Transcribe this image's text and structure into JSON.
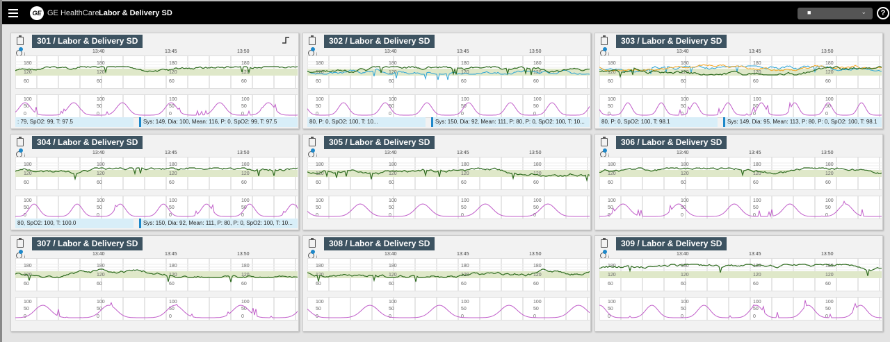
{
  "header": {
    "app": "GE HealthCare",
    "unit": "Labor & Delivery SD",
    "logo": "GE",
    "help": "?",
    "user_icon": "user-icon",
    "chevron": "⌄"
  },
  "time_labels": [
    "13:40",
    "13:45",
    "13:50"
  ],
  "fhr_scale": [
    "180",
    "120",
    "60"
  ],
  "toco_scale": [
    "100",
    "50",
    "0"
  ],
  "colors": {
    "fhr": "#2e6b1f",
    "toco": "#c05cc9",
    "maternal_hr": "#2aa3d6",
    "spo2_trace": "#f5a623",
    "band": "#dfe8c9",
    "title_bg": "#3d5361",
    "status_bg": "#d8eef8",
    "accent": "#1e88c9"
  },
  "beds": [
    {
      "title": "301 / Labor & Delivery SD",
      "status_left": ": 79, SpO2: 99, T: 97.5",
      "status_right": "Sys: 149, Dia: 100, Mean: 116, P: 0, SpO2: 99, T: 97.5"
    },
    {
      "title": "302 / Labor & Delivery SD",
      "status_left": "80, P: 0, SpO2: 100, T: 10...",
      "status_right": "Sys: 150, Dia: 92, Mean: 111, P: 80, P: 0, SpO2: 100, T: 10..."
    },
    {
      "title": "303 / Labor & Delivery SD",
      "status_left": "80, P: 0, SpO2: 100, T: 98.1",
      "status_right": "Sys: 149, Dia: 95, Mean: 113, P: 80, P: 0, SpO2: 100, T: 98.1"
    },
    {
      "title": "304 / Labor & Delivery SD",
      "status_left": "80, SpO2: 100, T: 100.0",
      "status_right": "Sys: 150, Dia: 92, Mean: 111, P: 80, P: 0, SpO2: 100, T: 10..."
    },
    {
      "title": "305 / Labor & Delivery SD",
      "status_left": "",
      "status_right": ""
    },
    {
      "title": "306 / Labor & Delivery SD",
      "status_left": "",
      "status_right": ""
    },
    {
      "title": "307 / Labor & Delivery SD",
      "status_left": "",
      "status_right": ""
    },
    {
      "title": "308 / Labor & Delivery SD",
      "status_left": "",
      "status_right": ""
    },
    {
      "title": "309 / Labor & Delivery SD",
      "status_left": "",
      "status_right": ""
    }
  ]
}
